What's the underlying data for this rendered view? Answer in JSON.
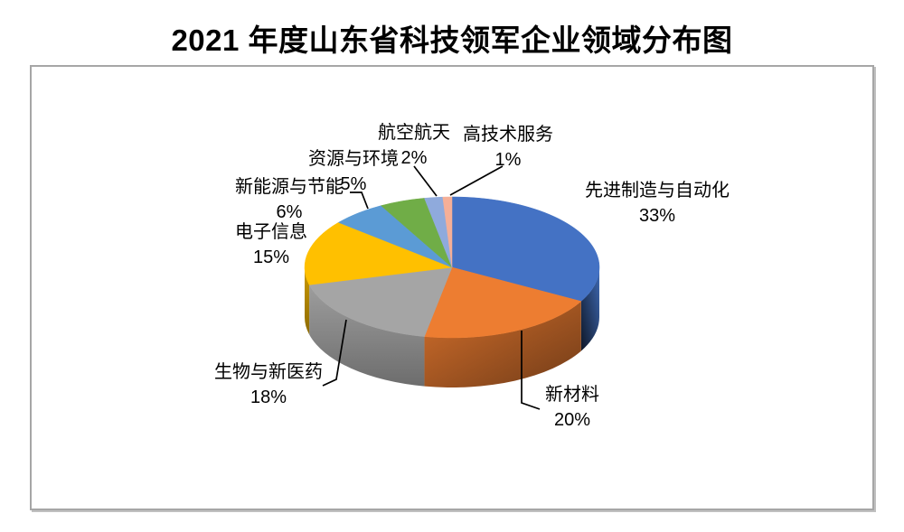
{
  "title": "2021 年度山东省科技领军企业领域分布图",
  "frame": {
    "border_color": "#A6A6A6",
    "background": "#FFFFFF"
  },
  "chart_data": {
    "type": "pie",
    "style": "3d-pie",
    "title": "2021 年度山东省科技领军企业领域分布图",
    "legend_position": "none",
    "data_labels": "category name + percentage, outside with leader lines",
    "rotation_start_deg": 0,
    "slices": [
      {
        "label": "先进制造与自动化",
        "value": 33,
        "pct": "33%",
        "color": "#4472C4"
      },
      {
        "label": "新材料",
        "value": 20,
        "pct": "20%",
        "color": "#ED7D31"
      },
      {
        "label": "生物与新医药",
        "value": 18,
        "pct": "18%",
        "color": "#A5A5A5"
      },
      {
        "label": "电子信息",
        "value": 15,
        "pct": "15%",
        "color": "#FFC000"
      },
      {
        "label": "新能源与节能",
        "value": 6,
        "pct": "6%",
        "color": "#5B9BD5"
      },
      {
        "label": "资源与环境",
        "value": 5,
        "pct": "5%",
        "color": "#70AD47"
      },
      {
        "label": "航空航天",
        "value": 2,
        "pct": "2%",
        "color": "#8FAADC"
      },
      {
        "label": "高技术服务",
        "value": 1,
        "pct": "1%",
        "color": "#F5AF97"
      }
    ]
  }
}
